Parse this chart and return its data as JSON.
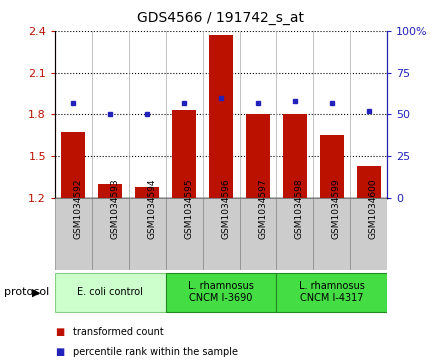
{
  "title": "GDS4566 / 191742_s_at",
  "samples": [
    "GSM1034592",
    "GSM1034593",
    "GSM1034594",
    "GSM1034595",
    "GSM1034596",
    "GSM1034597",
    "GSM1034598",
    "GSM1034599",
    "GSM1034600"
  ],
  "transformed_count": [
    1.67,
    1.3,
    1.28,
    1.83,
    2.37,
    1.8,
    1.8,
    1.65,
    1.43
  ],
  "percentile_rank": [
    57,
    50,
    50,
    57,
    60,
    57,
    58,
    57,
    52
  ],
  "ylim_left": [
    1.2,
    2.4
  ],
  "ylim_right": [
    0,
    100
  ],
  "yticks_left": [
    1.2,
    1.5,
    1.8,
    2.1,
    2.4
  ],
  "yticks_right": [
    0,
    25,
    50,
    75,
    100
  ],
  "ytick_labels_left": [
    "1.2",
    "1.5",
    "1.8",
    "2.1",
    "2.4"
  ],
  "ytick_labels_right": [
    "0",
    "25",
    "50",
    "75",
    "100%"
  ],
  "bar_color": "#bb1100",
  "dot_color": "#2222bb",
  "background_color": "#ffffff",
  "sample_box_color": "#cccccc",
  "sample_box_edge": "#888888",
  "protocol_groups": [
    {
      "label": "E. coli control",
      "start": 0,
      "end": 2,
      "color": "#ccffcc",
      "edge": "#88cc88"
    },
    {
      "label": "L. rhamnosus\nCNCM I-3690",
      "start": 3,
      "end": 5,
      "color": "#44dd44",
      "edge": "#228822"
    },
    {
      "label": "L. rhamnosus\nCNCM I-4317",
      "start": 6,
      "end": 8,
      "color": "#44dd44",
      "edge": "#228822"
    }
  ],
  "legend_bar_label": "transformed count",
  "legend_dot_label": "percentile rank within the sample",
  "protocol_label": "protocol",
  "figsize": [
    4.4,
    3.63
  ],
  "dpi": 100
}
